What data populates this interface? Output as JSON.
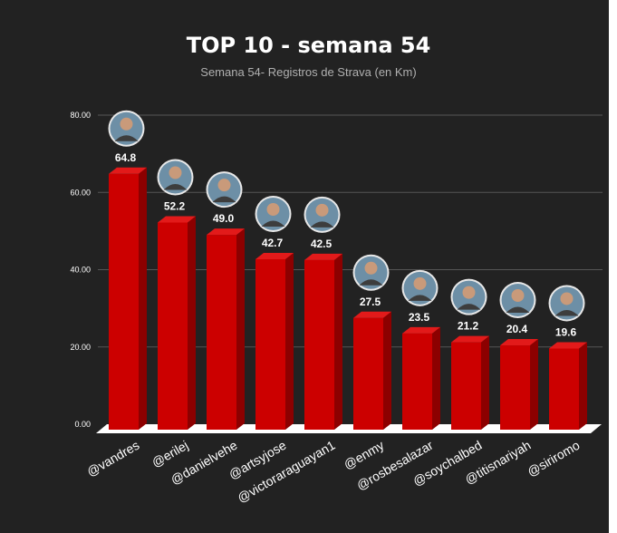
{
  "title": "TOP 10 - semana 54",
  "subtitle": "Semana 54- Registros de Strava (en Km)",
  "colors": {
    "background": "#222222",
    "bar_front": "#cc0000",
    "bar_side": "#8c0000",
    "bar_top": "#e21a1a",
    "floor": "#ffffff",
    "grid": "#555555",
    "text": "#ffffff"
  },
  "chart_data": {
    "type": "bar",
    "title": "TOP 10 - semana 54",
    "subtitle": "Semana 54- Registros de Strava (en Km)",
    "categories": [
      "@vandres",
      "@erilej",
      "@danielvehe",
      "@artsyjose",
      "@victoraraguayan1",
      "@enmy",
      "@rosbesalazar",
      "@soychalbed",
      "@titisnariyah",
      "@siriromo"
    ],
    "values": [
      64.8,
      52.2,
      49.0,
      42.7,
      42.5,
      27.5,
      23.5,
      21.2,
      20.4,
      19.6
    ],
    "value_labels": [
      "64.8",
      "52.2",
      "49.0",
      "42.7",
      "42.5",
      "27.5",
      "23.5",
      "21.2",
      "20.4",
      "19.6"
    ],
    "yticks": [
      "0.00",
      "20.00",
      "40.00",
      "60.00",
      "80.00"
    ],
    "ylim": [
      0,
      80
    ],
    "grid": true,
    "legend": "none",
    "avatars": "circular profile photo above each bar"
  }
}
